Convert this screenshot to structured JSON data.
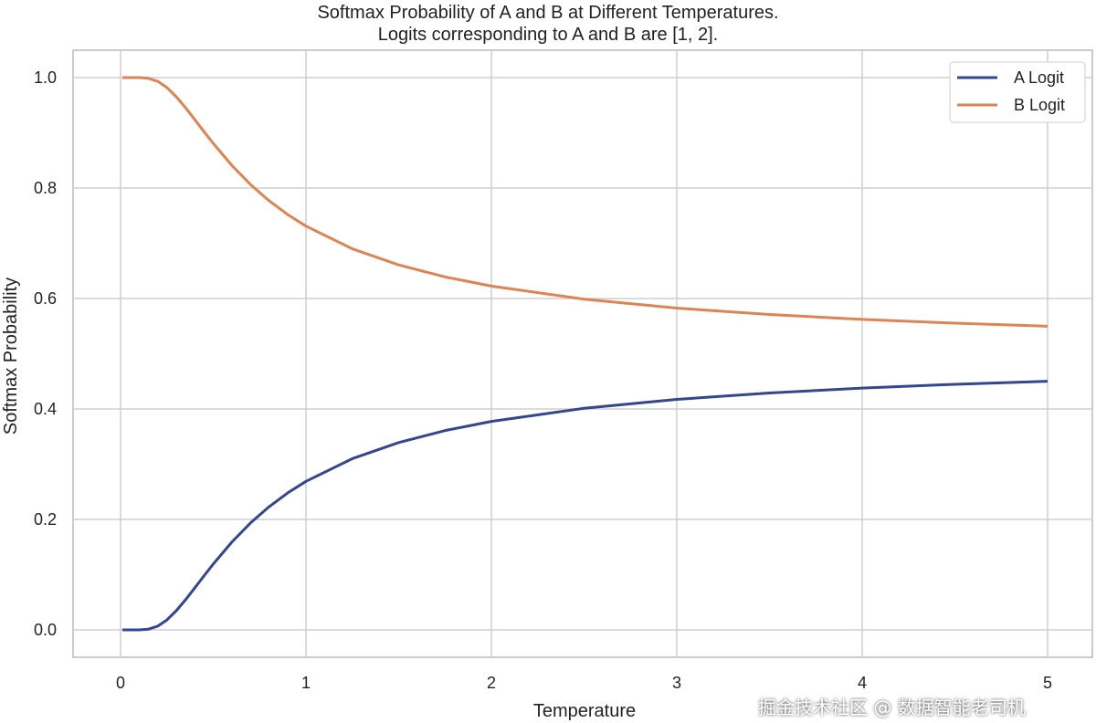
{
  "chart_data": {
    "type": "line",
    "title": [
      "Softmax Probability of A and B at Different Temperatures.",
      "Logits corresponding to A and B are [1, 2]."
    ],
    "xlabel": "Temperature",
    "ylabel": "Softmax Probability",
    "xlim": [
      -0.25,
      5.2
    ],
    "ylim": [
      -0.05,
      1.05
    ],
    "xticks": [
      0,
      1,
      2,
      3,
      4,
      5
    ],
    "xtick_labels": [
      "0",
      "1",
      "2",
      "3",
      "4",
      "5"
    ],
    "yticks": [
      0.0,
      0.2,
      0.4,
      0.6,
      0.8,
      1.0
    ],
    "ytick_labels": [
      "0.0",
      "0.2",
      "0.4",
      "0.6",
      "0.8",
      "1.0"
    ],
    "grid": true,
    "legend_position": "top-right",
    "x": [
      0.01,
      0.05,
      0.1,
      0.15,
      0.2,
      0.25,
      0.3,
      0.35,
      0.4,
      0.45,
      0.5,
      0.6,
      0.7,
      0.8,
      0.9,
      1.0,
      1.25,
      1.5,
      1.75,
      2.0,
      2.5,
      3.0,
      3.5,
      4.0,
      4.5,
      5.0
    ],
    "series": [
      {
        "name": "A Logit",
        "color": "#34468f",
        "values": [
          0.0,
          0.0,
          5e-05,
          0.00127,
          0.0067,
          0.018,
          0.0345,
          0.0543,
          0.0759,
          0.0978,
          0.1192,
          0.1589,
          0.1933,
          0.2227,
          0.2477,
          0.2689,
          0.31,
          0.3392,
          0.3609,
          0.3775,
          0.4013,
          0.4174,
          0.429,
          0.4378,
          0.4447,
          0.4502
        ]
      },
      {
        "name": "B Logit",
        "color": "#dd8452",
        "values": [
          1.0,
          1.0,
          0.99995,
          0.99873,
          0.9933,
          0.982,
          0.9655,
          0.9457,
          0.9241,
          0.9022,
          0.8808,
          0.8411,
          0.8067,
          0.7773,
          0.7523,
          0.7311,
          0.69,
          0.6608,
          0.6391,
          0.6225,
          0.5987,
          0.5826,
          0.571,
          0.5622,
          0.5553,
          0.5498
        ]
      }
    ]
  },
  "watermark": "掘金技术社区 @ 数据智能老司机"
}
